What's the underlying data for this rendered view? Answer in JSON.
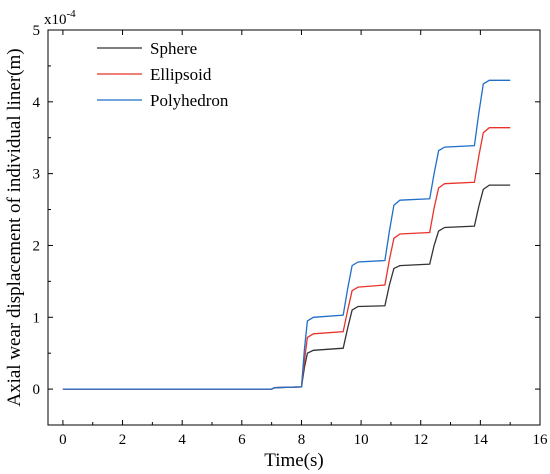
{
  "chart_data": {
    "type": "line",
    "title": "",
    "xlabel": "Time(s)",
    "ylabel": "Axial wear displacement of individual liner(m)",
    "y_multiplier_label": "x10",
    "y_multiplier_exponent": "-4",
    "xlim": [
      -0.5,
      16
    ],
    "ylim": [
      -0.5,
      5
    ],
    "x_ticks": [
      0,
      2,
      4,
      6,
      8,
      10,
      12,
      14,
      16
    ],
    "y_ticks": [
      0,
      1,
      2,
      3,
      4,
      5
    ],
    "x_tick_labels": [
      "0",
      "2",
      "4",
      "6",
      "8",
      "10",
      "12",
      "14",
      "16"
    ],
    "y_tick_labels": [
      "0",
      "1",
      "2",
      "3",
      "4",
      "5"
    ],
    "grid": false,
    "legend_position": "top-left",
    "series": [
      {
        "name": "Sphere",
        "color": "#333333",
        "points": [
          [
            0,
            0
          ],
          [
            7.0,
            0
          ],
          [
            7.1,
            0.02
          ],
          [
            8.0,
            0.03
          ],
          [
            8.1,
            0.3
          ],
          [
            8.2,
            0.5
          ],
          [
            8.4,
            0.54
          ],
          [
            9.4,
            0.57
          ],
          [
            9.55,
            0.85
          ],
          [
            9.7,
            1.1
          ],
          [
            9.9,
            1.15
          ],
          [
            10.8,
            1.16
          ],
          [
            10.95,
            1.45
          ],
          [
            11.1,
            1.68
          ],
          [
            11.3,
            1.72
          ],
          [
            12.3,
            1.74
          ],
          [
            12.45,
            2.0
          ],
          [
            12.6,
            2.2
          ],
          [
            12.8,
            2.25
          ],
          [
            13.8,
            2.27
          ],
          [
            13.95,
            2.55
          ],
          [
            14.1,
            2.78
          ],
          [
            14.3,
            2.84
          ],
          [
            15.0,
            2.84
          ]
        ]
      },
      {
        "name": "Ellipsoid",
        "color": "#e8332a",
        "points": [
          [
            0,
            0
          ],
          [
            7.0,
            0
          ],
          [
            7.1,
            0.02
          ],
          [
            8.0,
            0.03
          ],
          [
            8.1,
            0.4
          ],
          [
            8.2,
            0.72
          ],
          [
            8.4,
            0.77
          ],
          [
            9.4,
            0.8
          ],
          [
            9.55,
            1.1
          ],
          [
            9.7,
            1.37
          ],
          [
            9.9,
            1.42
          ],
          [
            10.8,
            1.45
          ],
          [
            10.95,
            1.8
          ],
          [
            11.1,
            2.1
          ],
          [
            11.3,
            2.16
          ],
          [
            12.3,
            2.18
          ],
          [
            12.45,
            2.52
          ],
          [
            12.6,
            2.8
          ],
          [
            12.8,
            2.86
          ],
          [
            13.8,
            2.88
          ],
          [
            13.95,
            3.25
          ],
          [
            14.1,
            3.57
          ],
          [
            14.3,
            3.64
          ],
          [
            15.0,
            3.64
          ]
        ]
      },
      {
        "name": "Polyhedron",
        "color": "#1f6fc8",
        "points": [
          [
            0,
            0
          ],
          [
            7.0,
            0
          ],
          [
            7.1,
            0.02
          ],
          [
            8.0,
            0.03
          ],
          [
            8.1,
            0.55
          ],
          [
            8.2,
            0.95
          ],
          [
            8.4,
            1.0
          ],
          [
            9.4,
            1.03
          ],
          [
            9.55,
            1.4
          ],
          [
            9.7,
            1.72
          ],
          [
            9.9,
            1.77
          ],
          [
            10.8,
            1.79
          ],
          [
            10.95,
            2.2
          ],
          [
            11.1,
            2.56
          ],
          [
            11.3,
            2.63
          ],
          [
            12.3,
            2.65
          ],
          [
            12.45,
            3.0
          ],
          [
            12.6,
            3.32
          ],
          [
            12.8,
            3.37
          ],
          [
            13.8,
            3.39
          ],
          [
            13.95,
            3.85
          ],
          [
            14.1,
            4.25
          ],
          [
            14.3,
            4.3
          ],
          [
            15.0,
            4.3
          ]
        ]
      }
    ]
  }
}
